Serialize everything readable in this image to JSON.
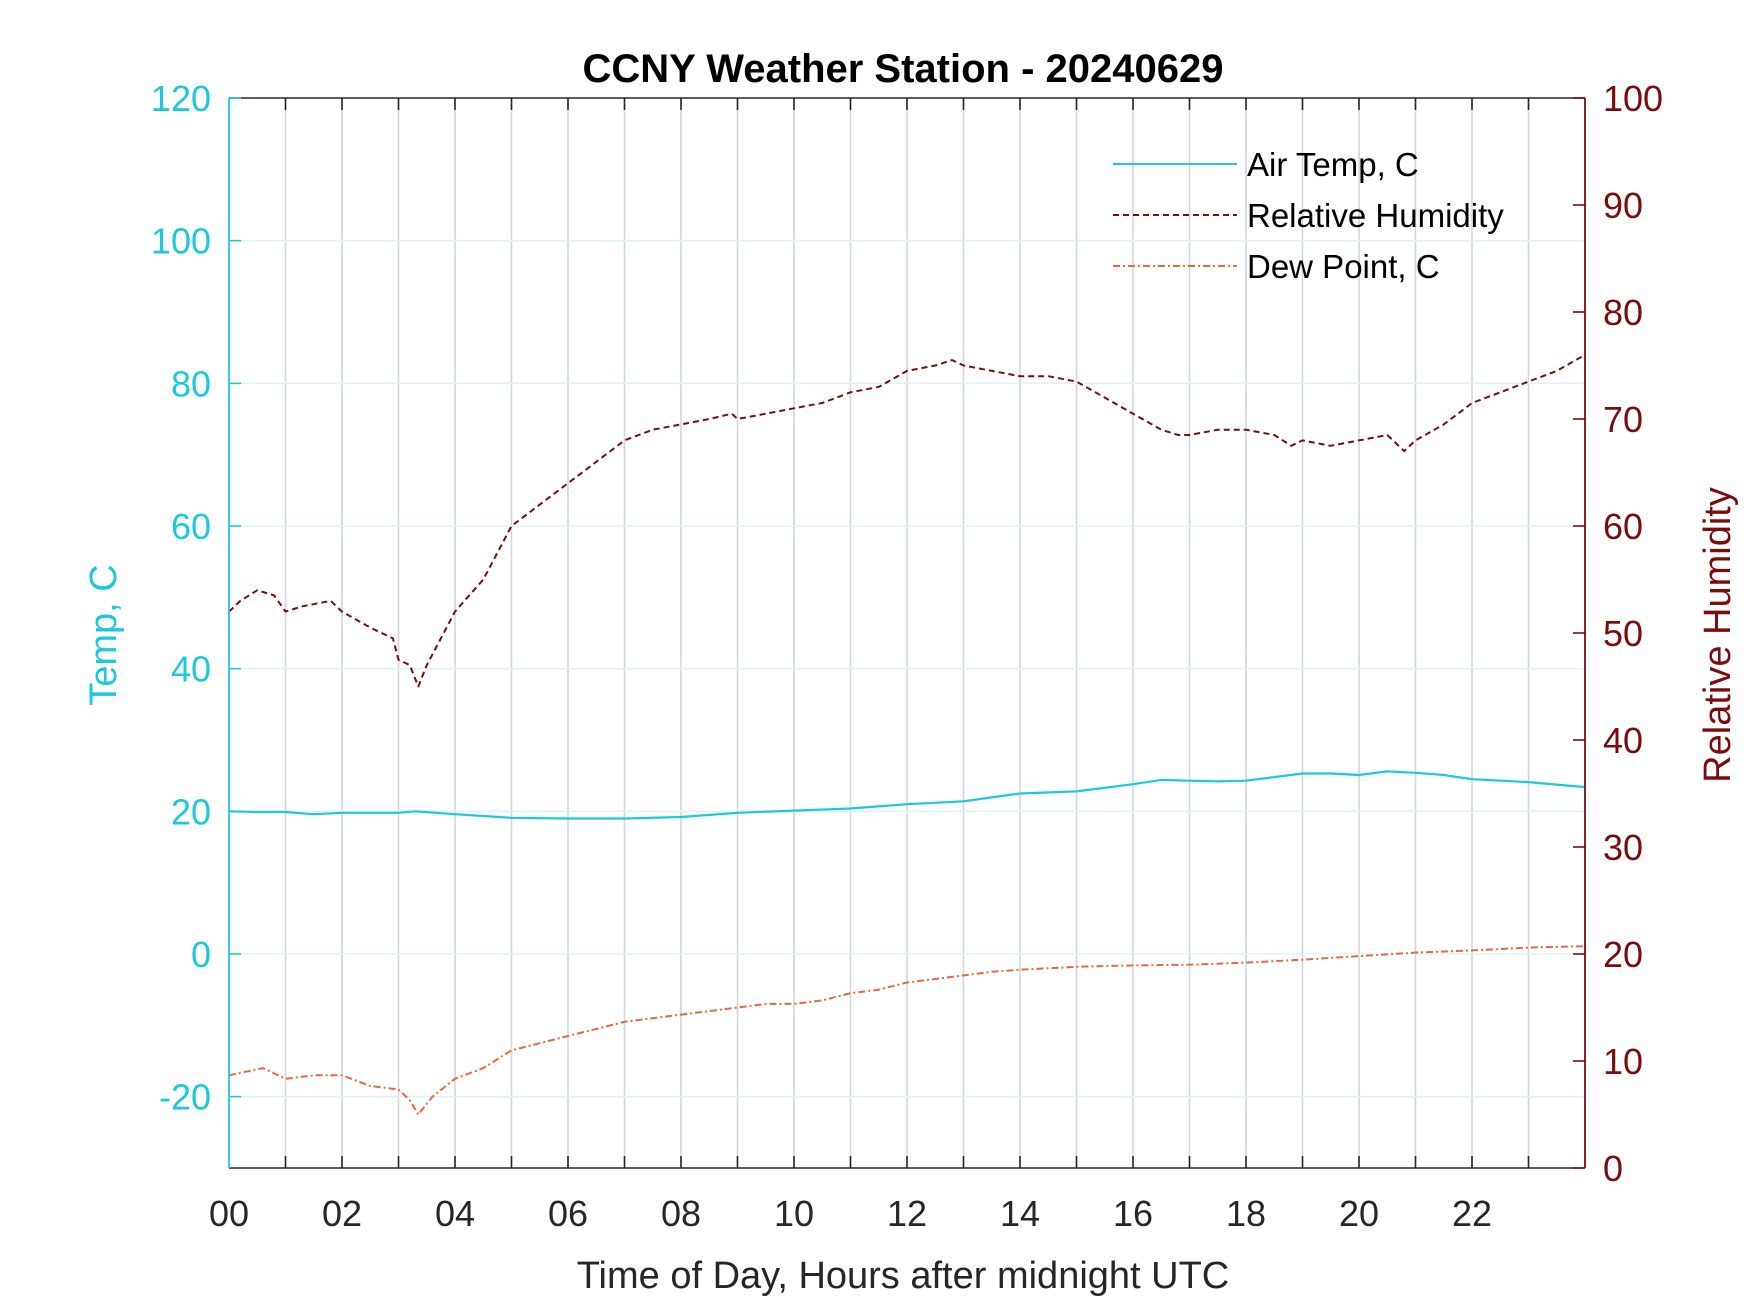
{
  "colors": {
    "air_temp": "#1cc8dc",
    "humidity": "#7a0c0c",
    "dew_point": "#e8693a",
    "left_axis": "#1cc8dc",
    "right_axis": "#7a0c0c",
    "grid_vertical": "#cfd6dc",
    "grid_horizontal": "#dff3f7"
  },
  "chart_data": {
    "type": "line",
    "title": "CCNY Weather Station - 20240629",
    "xlabel": "Time of Day, Hours after midnight UTC",
    "ylabel_left": "Temp, C",
    "ylabel_right": "Relative Humidity",
    "xlim": [
      0,
      24
    ],
    "ylim_left": [
      -30,
      120
    ],
    "ylim_right": [
      0,
      100
    ],
    "x_ticks": [
      0,
      2,
      4,
      6,
      8,
      10,
      12,
      14,
      16,
      18,
      20,
      22
    ],
    "x_tick_labels": [
      "00",
      "02",
      "04",
      "06",
      "08",
      "10",
      "12",
      "14",
      "16",
      "18",
      "20",
      "22"
    ],
    "y_left_ticks": [
      -20,
      0,
      20,
      40,
      60,
      80,
      100,
      120
    ],
    "y_left_tick_labels": [
      "-20",
      "0",
      "20",
      "40",
      "60",
      "80",
      "100",
      "120"
    ],
    "y_right_ticks": [
      0,
      10,
      20,
      30,
      40,
      50,
      60,
      70,
      80,
      90,
      100
    ],
    "y_right_tick_labels": [
      "0",
      "10",
      "20",
      "30",
      "40",
      "50",
      "60",
      "70",
      "80",
      "90",
      "100"
    ],
    "grid": true,
    "legend_position": "top-right",
    "series": [
      {
        "name": "Air Temp, C",
        "axis": "left",
        "style": "solid",
        "x": [
          0,
          0.5,
          1,
          1.5,
          2,
          2.5,
          3,
          3.3,
          4,
          5,
          6,
          7,
          8,
          9,
          10,
          11,
          12,
          13,
          14,
          15,
          16,
          16.5,
          17,
          17.5,
          18,
          18.5,
          19,
          19.5,
          20,
          20.5,
          21,
          21.5,
          22,
          23,
          24
        ],
        "y": [
          20,
          19.9,
          19.9,
          19.6,
          19.8,
          19.8,
          19.8,
          20,
          19.6,
          19.1,
          19.0,
          19.0,
          19.2,
          19.8,
          20.1,
          20.4,
          21.0,
          21.4,
          22.5,
          22.8,
          23.8,
          24.4,
          24.3,
          24.2,
          24.3,
          24.8,
          25.3,
          25.3,
          25.1,
          25.6,
          25.4,
          25.1,
          24.5,
          24.1,
          23.4
        ]
      },
      {
        "name": "Relative Humidity",
        "axis": "right",
        "style": "dashed",
        "x": [
          0,
          0.2,
          0.5,
          0.8,
          1.0,
          1.3,
          1.8,
          2.0,
          2.5,
          2.9,
          3.0,
          3.2,
          3.35,
          3.5,
          4.0,
          4.5,
          5.0,
          5.5,
          6.0,
          6.5,
          7.0,
          7.5,
          8.0,
          8.5,
          8.9,
          9.0,
          9.5,
          10.0,
          10.5,
          11.0,
          11.5,
          12.0,
          12.5,
          12.8,
          13.0,
          13.5,
          14.0,
          14.5,
          15.0,
          15.5,
          16.0,
          16.5,
          16.8,
          17.0,
          17.5,
          18.0,
          18.5,
          18.8,
          19.0,
          19.5,
          20.0,
          20.5,
          20.8,
          21.0,
          21.5,
          22.0,
          22.5,
          23.0,
          23.5,
          24.0
        ],
        "y": [
          52,
          53,
          54,
          53.5,
          52,
          52.5,
          53,
          52,
          50.5,
          49.5,
          47.5,
          47,
          45,
          47,
          52,
          55,
          60,
          62,
          64,
          66,
          68,
          69,
          69.5,
          70,
          70.5,
          70,
          70.5,
          71,
          71.5,
          72.5,
          73,
          74.5,
          75,
          75.5,
          75,
          74.5,
          74,
          74,
          73.5,
          72,
          70.5,
          69,
          68.5,
          68.5,
          69,
          69,
          68.5,
          67.5,
          68,
          67.5,
          68,
          68.5,
          67,
          68,
          69.5,
          71.5,
          72.5,
          73.5,
          74.5,
          76
        ]
      },
      {
        "name": "Dew Point, C",
        "axis": "left",
        "style": "dashdot",
        "x": [
          0,
          0.3,
          0.6,
          1.0,
          1.5,
          2.0,
          2.5,
          3.0,
          3.2,
          3.35,
          3.6,
          4.0,
          4.5,
          5.0,
          5.5,
          6.0,
          6.5,
          7.0,
          7.5,
          8.0,
          8.5,
          9.0,
          9.5,
          10.0,
          10.5,
          11.0,
          11.5,
          12.0,
          12.5,
          13.0,
          13.5,
          14.0,
          15.0,
          16.0,
          17.0,
          18.0,
          19.0,
          20.0,
          21.0,
          22.0,
          23.0,
          24.0
        ],
        "y": [
          -17,
          -16.5,
          -16,
          -17.5,
          -17,
          -17,
          -18.5,
          -19,
          -20.5,
          -22.5,
          -20,
          -17.5,
          -16,
          -13.5,
          -12.5,
          -11.5,
          -10.5,
          -9.5,
          -9,
          -8.5,
          -8,
          -7.5,
          -7,
          -7,
          -6.5,
          -5.5,
          -5,
          -4,
          -3.5,
          -3,
          -2.5,
          -2.2,
          -1.8,
          -1.6,
          -1.5,
          -1.2,
          -0.8,
          -0.3,
          0.2,
          0.5,
          0.9,
          1.1
        ]
      }
    ]
  }
}
